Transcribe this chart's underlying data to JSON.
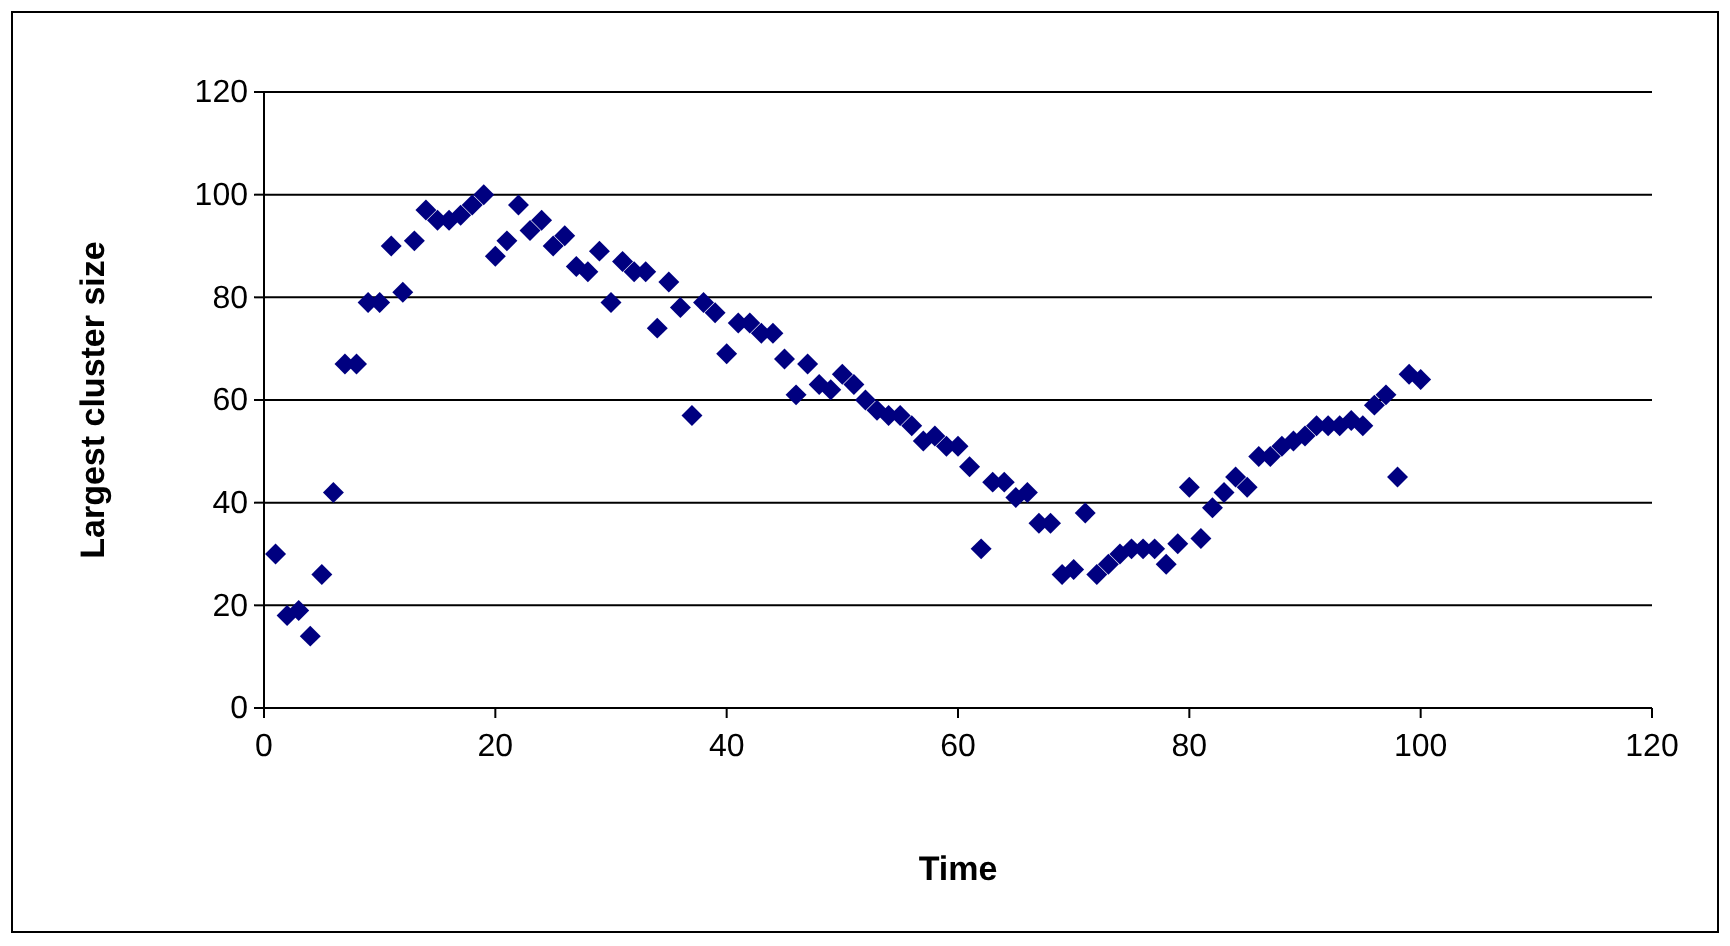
{
  "chart_data": {
    "type": "scatter",
    "xlabel": "Time",
    "ylabel": "Largest cluster size",
    "x": [
      1,
      2,
      3,
      4,
      5,
      6,
      7,
      8,
      9,
      10,
      11,
      12,
      13,
      14,
      15,
      16,
      17,
      18,
      19,
      20,
      21,
      22,
      23,
      24,
      25,
      26,
      27,
      28,
      29,
      30,
      31,
      32,
      33,
      34,
      35,
      36,
      37,
      38,
      39,
      40,
      41,
      42,
      43,
      44,
      45,
      46,
      47,
      48,
      49,
      50,
      51,
      52,
      53,
      54,
      55,
      56,
      57,
      58,
      59,
      60,
      61,
      62,
      63,
      64,
      65,
      66,
      67,
      68,
      69,
      70,
      71,
      72,
      73,
      74,
      75,
      76,
      77,
      78,
      79,
      80,
      81,
      82,
      83,
      84,
      85,
      86,
      87,
      88,
      89,
      90,
      91,
      92,
      93,
      94,
      95,
      96,
      97,
      98,
      99,
      100
    ],
    "series": [
      {
        "color": "#000080",
        "values": [
          30,
          18,
          19,
          14,
          26,
          42,
          67,
          67,
          79,
          79,
          90,
          81,
          91,
          97,
          95,
          95,
          96,
          98,
          100,
          88,
          91,
          98,
          93,
          95,
          90,
          92,
          86,
          85,
          89,
          79,
          87,
          85,
          85,
          74,
          83,
          78,
          57,
          79,
          77,
          69,
          75,
          75,
          73,
          73,
          68,
          61,
          67,
          63,
          62,
          65,
          63,
          60,
          58,
          57,
          57,
          55,
          52,
          53,
          51,
          51,
          47,
          31,
          44,
          44,
          41,
          42,
          36,
          36,
          26,
          27,
          38,
          26,
          28,
          30,
          31,
          31,
          31,
          28,
          32,
          43,
          33,
          39,
          42,
          45,
          43,
          49,
          49,
          51,
          52,
          53,
          55,
          55,
          55,
          56,
          55,
          59,
          61,
          45,
          65,
          64
        ]
      }
    ],
    "xlim": [
      0,
      120
    ],
    "ylim": [
      0,
      120
    ],
    "xticks": [
      0,
      20,
      40,
      60,
      80,
      100,
      120
    ],
    "yticks": [
      0,
      20,
      40,
      60,
      80,
      100,
      120
    ],
    "grid": "y",
    "marker": "diamond"
  }
}
